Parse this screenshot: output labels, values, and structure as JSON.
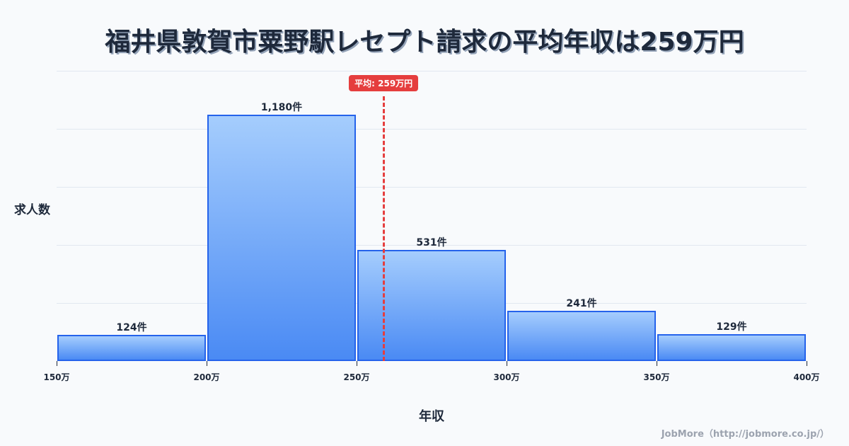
{
  "title": "福井県敦賀市粟野駅レセプト請求の平均年収は259万円",
  "mean_badge": "平均: 259万円",
  "ylabel": "求人数",
  "xlabel": "年収",
  "credit": "JobMore（http://jobmore.co.jp/）",
  "colors": {
    "bar_fill_top": "#a5cdfd",
    "bar_fill_bottom": "#4a8af4",
    "bar_border": "#2563eb",
    "mean_line": "#e53e3e",
    "text": "#1e293b",
    "background": "#f8fafc"
  },
  "bars": [
    {
      "label": "124件"
    },
    {
      "label": "1,180件"
    },
    {
      "label": "531件"
    },
    {
      "label": "241件"
    },
    {
      "label": "129件"
    }
  ],
  "ticks": [
    {
      "label": "150万"
    },
    {
      "label": "200万"
    },
    {
      "label": "250万"
    },
    {
      "label": "300万"
    },
    {
      "label": "350万"
    },
    {
      "label": "400万"
    }
  ],
  "chart_data": {
    "type": "bar",
    "title": "福井県敦賀市粟野駅レセプト請求の平均年収は259万円",
    "xlabel": "年収",
    "ylabel": "求人数",
    "categories": [
      "150万-200万",
      "200万-250万",
      "250万-300万",
      "300万-350万",
      "350万-400万"
    ],
    "bin_edges": [
      150,
      200,
      250,
      300,
      350,
      400
    ],
    "values": [
      124,
      1180,
      531,
      241,
      129
    ],
    "value_labels": [
      "124件",
      "1,180件",
      "531件",
      "241件",
      "129件"
    ],
    "x_tick_labels": [
      "150万",
      "200万",
      "250万",
      "300万",
      "350万",
      "400万"
    ],
    "xlim": [
      150,
      400
    ],
    "grid": true,
    "annotations": [
      {
        "type": "vline",
        "x": 259,
        "label": "平均: 259万円",
        "style": "dashed",
        "color": "#e53e3e"
      }
    ],
    "legend": null
  }
}
